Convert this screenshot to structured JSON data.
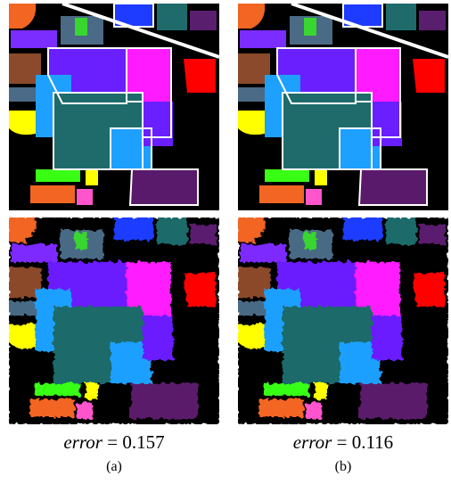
{
  "panels": [
    {
      "metric": "error",
      "operator": "=",
      "value": 0.157,
      "label": "(a)"
    },
    {
      "metric": "error",
      "operator": "=",
      "value": 0.116,
      "label": "(b)"
    }
  ]
}
